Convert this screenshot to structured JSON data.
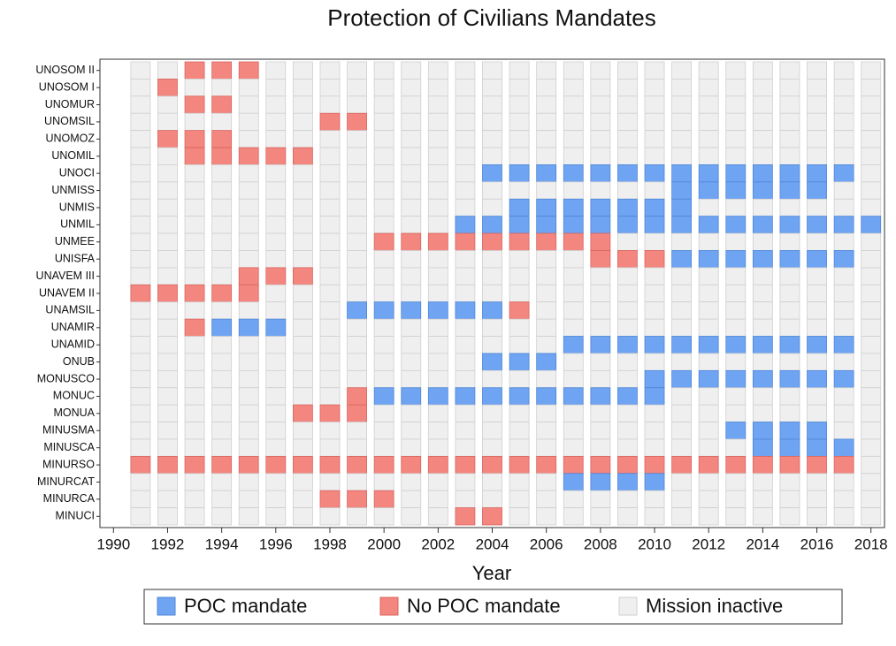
{
  "chart_data": {
    "type": "heatmap",
    "title": "Protection of Civilians Mandates",
    "x_label": "Year",
    "x": [
      1991,
      1992,
      1993,
      1994,
      1995,
      1996,
      1997,
      1998,
      1999,
      2000,
      2001,
      2002,
      2003,
      2004,
      2005,
      2006,
      2007,
      2008,
      2009,
      2010,
      2011,
      2012,
      2013,
      2014,
      2015,
      2016,
      2017,
      2018
    ],
    "xlim": [
      1989.5,
      2018.5
    ],
    "xticks": [
      1990,
      1992,
      1994,
      1996,
      1998,
      2000,
      2002,
      2004,
      2006,
      2008,
      2010,
      2012,
      2014,
      2016,
      2018
    ],
    "categories": [
      "UNOSOM II",
      "UNOSOM I",
      "UNOMUR",
      "UNOMSIL",
      "UNOMOZ",
      "UNOMIL",
      "UNOCI",
      "UNMISS",
      "UNMIS",
      "UNMIL",
      "UNMEE",
      "UNISFA",
      "UNAVEM III",
      "UNAVEM II",
      "UNAMSIL",
      "UNAMIR",
      "UNAMID",
      "ONUB",
      "MONUSCO",
      "MONUC",
      "MONUA",
      "MINUSMA",
      "MINUSCA",
      "MINURSO",
      "MINURCAT",
      "MINURCA",
      "MINUCI"
    ],
    "legend": [
      {
        "name": "Mission inactive",
        "color": "#efefef"
      },
      {
        "name": "POC mandate",
        "color": "#6fa4f2"
      },
      {
        "name": "No POC mandate",
        "color": "#f3867f"
      }
    ],
    "legend_order": [
      1,
      2,
      0
    ],
    "values": [
      [
        0,
        0,
        2,
        2,
        2,
        0,
        0,
        0,
        0,
        0,
        0,
        0,
        0,
        0,
        0,
        0,
        0,
        0,
        0,
        0,
        0,
        0,
        0,
        0,
        0,
        0,
        0,
        0
      ],
      [
        0,
        2,
        0,
        0,
        0,
        0,
        0,
        0,
        0,
        0,
        0,
        0,
        0,
        0,
        0,
        0,
        0,
        0,
        0,
        0,
        0,
        0,
        0,
        0,
        0,
        0,
        0,
        0
      ],
      [
        0,
        0,
        2,
        2,
        0,
        0,
        0,
        0,
        0,
        0,
        0,
        0,
        0,
        0,
        0,
        0,
        0,
        0,
        0,
        0,
        0,
        0,
        0,
        0,
        0,
        0,
        0,
        0
      ],
      [
        0,
        0,
        0,
        0,
        0,
        0,
        0,
        2,
        2,
        0,
        0,
        0,
        0,
        0,
        0,
        0,
        0,
        0,
        0,
        0,
        0,
        0,
        0,
        0,
        0,
        0,
        0,
        0
      ],
      [
        0,
        2,
        2,
        2,
        0,
        0,
        0,
        0,
        0,
        0,
        0,
        0,
        0,
        0,
        0,
        0,
        0,
        0,
        0,
        0,
        0,
        0,
        0,
        0,
        0,
        0,
        0,
        0
      ],
      [
        0,
        0,
        2,
        2,
        2,
        2,
        2,
        0,
        0,
        0,
        0,
        0,
        0,
        0,
        0,
        0,
        0,
        0,
        0,
        0,
        0,
        0,
        0,
        0,
        0,
        0,
        0,
        0
      ],
      [
        0,
        0,
        0,
        0,
        0,
        0,
        0,
        0,
        0,
        0,
        0,
        0,
        0,
        1,
        1,
        1,
        1,
        1,
        1,
        1,
        1,
        1,
        1,
        1,
        1,
        1,
        1,
        0
      ],
      [
        0,
        0,
        0,
        0,
        0,
        0,
        0,
        0,
        0,
        0,
        0,
        0,
        0,
        0,
        0,
        0,
        0,
        0,
        0,
        0,
        1,
        1,
        1,
        1,
        1,
        1,
        0,
        0
      ],
      [
        0,
        0,
        0,
        0,
        0,
        0,
        0,
        0,
        0,
        0,
        0,
        0,
        0,
        0,
        1,
        1,
        1,
        1,
        1,
        1,
        1,
        0,
        0,
        0,
        0,
        0,
        0,
        0
      ],
      [
        0,
        0,
        0,
        0,
        0,
        0,
        0,
        0,
        0,
        0,
        0,
        0,
        1,
        1,
        1,
        1,
        1,
        1,
        1,
        1,
        1,
        1,
        1,
        1,
        1,
        1,
        1,
        1
      ],
      [
        0,
        0,
        0,
        0,
        0,
        0,
        0,
        0,
        0,
        2,
        2,
        2,
        2,
        2,
        2,
        2,
        2,
        2,
        0,
        0,
        0,
        0,
        0,
        0,
        0,
        0,
        0,
        0
      ],
      [
        0,
        0,
        0,
        0,
        0,
        0,
        0,
        0,
        0,
        0,
        0,
        0,
        0,
        0,
        0,
        0,
        0,
        2,
        2,
        2,
        1,
        1,
        1,
        1,
        1,
        1,
        1,
        0
      ],
      [
        0,
        0,
        0,
        0,
        2,
        2,
        2,
        0,
        0,
        0,
        0,
        0,
        0,
        0,
        0,
        0,
        0,
        0,
        0,
        0,
        0,
        0,
        0,
        0,
        0,
        0,
        0,
        0
      ],
      [
        2,
        2,
        2,
        2,
        2,
        0,
        0,
        0,
        0,
        0,
        0,
        0,
        0,
        0,
        0,
        0,
        0,
        0,
        0,
        0,
        0,
        0,
        0,
        0,
        0,
        0,
        0,
        0
      ],
      [
        0,
        0,
        0,
        0,
        0,
        0,
        0,
        0,
        1,
        1,
        1,
        1,
        1,
        1,
        2,
        0,
        0,
        0,
        0,
        0,
        0,
        0,
        0,
        0,
        0,
        0,
        0,
        0
      ],
      [
        0,
        0,
        2,
        1,
        1,
        1,
        0,
        0,
        0,
        0,
        0,
        0,
        0,
        0,
        0,
        0,
        0,
        0,
        0,
        0,
        0,
        0,
        0,
        0,
        0,
        0,
        0,
        0
      ],
      [
        0,
        0,
        0,
        0,
        0,
        0,
        0,
        0,
        0,
        0,
        0,
        0,
        0,
        0,
        0,
        0,
        1,
        1,
        1,
        1,
        1,
        1,
        1,
        1,
        1,
        1,
        1,
        0
      ],
      [
        0,
        0,
        0,
        0,
        0,
        0,
        0,
        0,
        0,
        0,
        0,
        0,
        0,
        1,
        1,
        1,
        0,
        0,
        0,
        0,
        0,
        0,
        0,
        0,
        0,
        0,
        0,
        0
      ],
      [
        0,
        0,
        0,
        0,
        0,
        0,
        0,
        0,
        0,
        0,
        0,
        0,
        0,
        0,
        0,
        0,
        0,
        0,
        0,
        1,
        1,
        1,
        1,
        1,
        1,
        1,
        1,
        0
      ],
      [
        0,
        0,
        0,
        0,
        0,
        0,
        0,
        0,
        2,
        1,
        1,
        1,
        1,
        1,
        1,
        1,
        1,
        1,
        1,
        1,
        0,
        0,
        0,
        0,
        0,
        0,
        0,
        0
      ],
      [
        0,
        0,
        0,
        0,
        0,
        0,
        2,
        2,
        2,
        0,
        0,
        0,
        0,
        0,
        0,
        0,
        0,
        0,
        0,
        0,
        0,
        0,
        0,
        0,
        0,
        0,
        0,
        0
      ],
      [
        0,
        0,
        0,
        0,
        0,
        0,
        0,
        0,
        0,
        0,
        0,
        0,
        0,
        0,
        0,
        0,
        0,
        0,
        0,
        0,
        0,
        0,
        1,
        1,
        1,
        1,
        0,
        0
      ],
      [
        0,
        0,
        0,
        0,
        0,
        0,
        0,
        0,
        0,
        0,
        0,
        0,
        0,
        0,
        0,
        0,
        0,
        0,
        0,
        0,
        0,
        0,
        0,
        1,
        1,
        1,
        1,
        0
      ],
      [
        2,
        2,
        2,
        2,
        2,
        2,
        2,
        2,
        2,
        2,
        2,
        2,
        2,
        2,
        2,
        2,
        2,
        2,
        2,
        2,
        2,
        2,
        2,
        2,
        2,
        2,
        2,
        0
      ],
      [
        0,
        0,
        0,
        0,
        0,
        0,
        0,
        0,
        0,
        0,
        0,
        0,
        0,
        0,
        0,
        0,
        1,
        1,
        1,
        1,
        0,
        0,
        0,
        0,
        0,
        0,
        0,
        0
      ],
      [
        0,
        0,
        0,
        0,
        0,
        0,
        0,
        2,
        2,
        2,
        0,
        0,
        0,
        0,
        0,
        0,
        0,
        0,
        0,
        0,
        0,
        0,
        0,
        0,
        0,
        0,
        0,
        0
      ],
      [
        0,
        0,
        0,
        0,
        0,
        0,
        0,
        0,
        0,
        0,
        0,
        0,
        2,
        2,
        0,
        0,
        0,
        0,
        0,
        0,
        0,
        0,
        0,
        0,
        0,
        0,
        0,
        0
      ]
    ]
  }
}
